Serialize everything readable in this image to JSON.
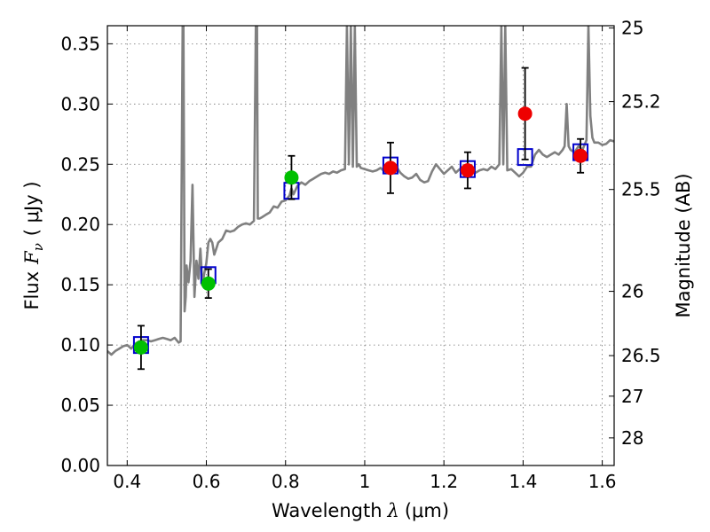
{
  "chart_data": {
    "type": "scatter",
    "title": "",
    "xlabel": "Wavelength",
    "xlabel_symbol": "λ",
    "xlabel_unit": "(μm)",
    "ylabel": "Flux",
    "ylabel_symbol": "F",
    "ylabel_subscript": "ν",
    "ylabel_unit": "( μJy )",
    "y2label": "Magnitude (AB)",
    "xlim": [
      0.35,
      1.63
    ],
    "ylim": [
      0.0,
      0.365
    ],
    "grid": true,
    "x_ticks": [
      0.4,
      0.6,
      0.8,
      1.0,
      1.2,
      1.4,
      1.6
    ],
    "x_tick_labels": [
      "0.4",
      "0.6",
      "0.8",
      "1",
      "1.2",
      "1.4",
      "1.6"
    ],
    "y_ticks": [
      0.0,
      0.05,
      0.1,
      0.15,
      0.2,
      0.25,
      0.3,
      0.35
    ],
    "y_tick_labels": [
      "0.00",
      "0.05",
      "0.10",
      "0.15",
      "0.20",
      "0.25",
      "0.30",
      "0.35"
    ],
    "y2_ticks": [
      25,
      25.2,
      25.5,
      26,
      26.5,
      27,
      28
    ],
    "y2_tick_labels": [
      "25",
      "25.2",
      "25.5",
      "26",
      "26.5",
      "27",
      "28"
    ],
    "colors": {
      "spectrum": "#808080",
      "green_points": "#00c000",
      "red_points": "#ee0000",
      "model_squares": "#0000cc",
      "errorbars": "#000000"
    },
    "series": [
      {
        "type": "line",
        "color": "#808080",
        "x": [
          0.35,
          0.36,
          0.37,
          0.38,
          0.39,
          0.4,
          0.41,
          0.42,
          0.43,
          0.44,
          0.45,
          0.46,
          0.47,
          0.48,
          0.49,
          0.5,
          0.51,
          0.52,
          0.53,
          0.535,
          0.54,
          0.542,
          0.545,
          0.548,
          0.55,
          0.555,
          0.56,
          0.565,
          0.57,
          0.575,
          0.58,
          0.585,
          0.59,
          0.595,
          0.6,
          0.605,
          0.61,
          0.615,
          0.62,
          0.625,
          0.63,
          0.64,
          0.65,
          0.66,
          0.67,
          0.68,
          0.69,
          0.7,
          0.71,
          0.72,
          0.725,
          0.728,
          0.73,
          0.735,
          0.74,
          0.75,
          0.76,
          0.77,
          0.78,
          0.79,
          0.8,
          0.81,
          0.815,
          0.82,
          0.83,
          0.84,
          0.85,
          0.86,
          0.87,
          0.88,
          0.89,
          0.9,
          0.91,
          0.92,
          0.93,
          0.94,
          0.95,
          0.955,
          0.96,
          0.965,
          0.97,
          0.975,
          0.98,
          0.985,
          0.99,
          1.0,
          1.01,
          1.02,
          1.03,
          1.04,
          1.05,
          1.06,
          1.07,
          1.08,
          1.09,
          1.1,
          1.11,
          1.12,
          1.13,
          1.14,
          1.15,
          1.16,
          1.17,
          1.18,
          1.19,
          1.2,
          1.21,
          1.22,
          1.23,
          1.24,
          1.25,
          1.26,
          1.27,
          1.28,
          1.29,
          1.3,
          1.31,
          1.32,
          1.33,
          1.34,
          1.345,
          1.35,
          1.355,
          1.36,
          1.37,
          1.38,
          1.39,
          1.4,
          1.41,
          1.42,
          1.43,
          1.44,
          1.45,
          1.46,
          1.47,
          1.48,
          1.49,
          1.5,
          1.505,
          1.51,
          1.515,
          1.52,
          1.53,
          1.54,
          1.55,
          1.56,
          1.565,
          1.57,
          1.575,
          1.58,
          1.59,
          1.6,
          1.61,
          1.62,
          1.63
        ],
        "y": [
          0.095,
          0.092,
          0.095,
          0.097,
          0.099,
          0.1,
          0.097,
          0.101,
          0.103,
          0.104,
          0.104,
          0.103,
          0.104,
          0.105,
          0.106,
          0.105,
          0.104,
          0.106,
          0.102,
          0.103,
          0.365,
          0.365,
          0.128,
          0.14,
          0.166,
          0.152,
          0.17,
          0.233,
          0.14,
          0.17,
          0.155,
          0.18,
          0.15,
          0.16,
          0.168,
          0.185,
          0.188,
          0.185,
          0.175,
          0.18,
          0.185,
          0.188,
          0.195,
          0.194,
          0.195,
          0.198,
          0.2,
          0.201,
          0.2,
          0.203,
          0.365,
          0.365,
          0.205,
          0.205,
          0.206,
          0.208,
          0.21,
          0.215,
          0.214,
          0.219,
          0.22,
          0.224,
          0.23,
          0.225,
          0.232,
          0.235,
          0.233,
          0.236,
          0.238,
          0.24,
          0.242,
          0.243,
          0.242,
          0.244,
          0.243,
          0.245,
          0.246,
          0.365,
          0.25,
          0.365,
          0.248,
          0.365,
          0.248,
          0.25,
          0.247,
          0.246,
          0.245,
          0.244,
          0.245,
          0.247,
          0.244,
          0.245,
          0.248,
          0.248,
          0.243,
          0.24,
          0.238,
          0.239,
          0.242,
          0.237,
          0.235,
          0.236,
          0.244,
          0.25,
          0.246,
          0.242,
          0.245,
          0.248,
          0.243,
          0.246,
          0.248,
          0.245,
          0.247,
          0.243,
          0.245,
          0.246,
          0.245,
          0.248,
          0.246,
          0.25,
          0.365,
          0.25,
          0.365,
          0.245,
          0.246,
          0.243,
          0.24,
          0.243,
          0.248,
          0.248,
          0.258,
          0.262,
          0.258,
          0.256,
          0.258,
          0.26,
          0.258,
          0.262,
          0.265,
          0.3,
          0.265,
          0.262,
          0.26,
          0.265,
          0.262,
          0.27,
          0.365,
          0.29,
          0.272,
          0.268,
          0.268,
          0.266,
          0.267,
          0.27,
          0.269
        ]
      },
      {
        "type": "scatter",
        "marker": "circle",
        "color": "#00c000",
        "x": [
          0.435,
          0.605,
          0.815
        ],
        "y": [
          0.098,
          0.151,
          0.239
        ],
        "yerr": [
          0.018,
          0.012,
          0.018
        ]
      },
      {
        "type": "scatter",
        "marker": "circle",
        "color": "#ee0000",
        "x": [
          1.065,
          1.26,
          1.405,
          1.545
        ],
        "y": [
          0.247,
          0.245,
          0.292,
          0.257
        ],
        "yerr": [
          0.021,
          0.015,
          0.038,
          0.014
        ]
      },
      {
        "type": "scatter",
        "marker": "square",
        "color": "#0000cc",
        "x": [
          0.435,
          0.605,
          0.815,
          1.065,
          1.26,
          1.405,
          1.545
        ],
        "y": [
          0.1,
          0.158,
          0.228,
          0.249,
          0.246,
          0.256,
          0.26
        ]
      }
    ]
  }
}
